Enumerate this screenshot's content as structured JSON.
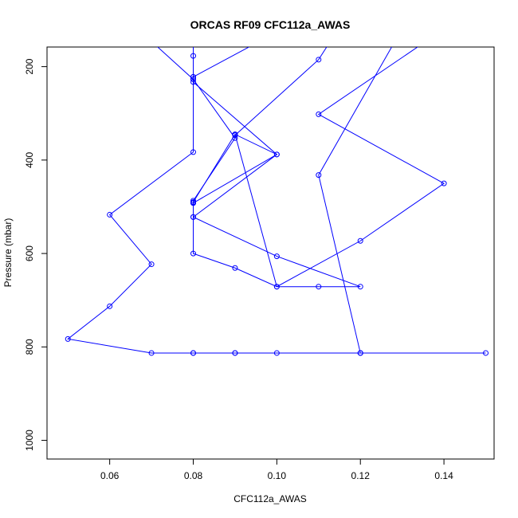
{
  "chart_data": {
    "type": "line",
    "title": "ORCAS RF09 CFC112a_AWAS",
    "xlabel": "CFC112a_AWAS",
    "ylabel": "Pressure (mbar)",
    "xlim": [
      0.045,
      0.152
    ],
    "ylim": [
      1040,
      158
    ],
    "y_inverted": true,
    "x_ticks": [
      0.06,
      0.08,
      0.1,
      0.12,
      0.14
    ],
    "x_tick_labels": [
      "0.06",
      "0.08",
      "0.10",
      "0.12",
      "0.14"
    ],
    "y_ticks": [
      200,
      400,
      600,
      800,
      1000
    ],
    "y_tick_labels": [
      "200",
      "400",
      "600",
      "800",
      "1000"
    ],
    "grid": false,
    "series": [
      {
        "color": "#0000ff",
        "marker": "open-circle",
        "points": [
          [
            0.08,
            813
          ],
          [
            0.09,
            813
          ],
          [
            0.09,
            813
          ],
          [
            0.1,
            813
          ],
          [
            0.12,
            813
          ],
          [
            0.12,
            813
          ],
          [
            0.15,
            813
          ],
          [
            0.08,
            813
          ],
          [
            0.07,
            813
          ],
          [
            0.05,
            783
          ],
          [
            0.06,
            713
          ],
          [
            0.07,
            623
          ],
          [
            0.06,
            517
          ],
          [
            0.08,
            383
          ],
          [
            0.08,
            222
          ],
          [
            0.08,
            227
          ],
          [
            0.08,
            177
          ],
          [
            0.08,
            145
          ]
        ]
      },
      {
        "color": "#0000ff",
        "marker": "open-circle",
        "points": [
          [
            0.0705,
            150
          ],
          [
            0.08,
            227
          ],
          [
            0.09,
            353
          ],
          [
            0.08,
            487
          ],
          [
            0.08,
            492
          ],
          [
            0.08,
            522
          ],
          [
            0.1,
            388
          ],
          [
            0.09,
            345
          ],
          [
            0.09,
            347
          ],
          [
            0.11,
            185
          ],
          [
            0.1125,
            150
          ]
        ]
      },
      {
        "color": "#0000ff",
        "marker": "open-circle",
        "points": [
          [
            0.095,
            150
          ],
          [
            0.08,
            222
          ],
          [
            0.08,
            233
          ],
          [
            0.1,
            388
          ],
          [
            0.08,
            492
          ],
          [
            0.08,
            522
          ],
          [
            0.1,
            606
          ],
          [
            0.12,
            671
          ],
          [
            0.11,
            671
          ],
          [
            0.1,
            671
          ],
          [
            0.09,
            631
          ],
          [
            0.08,
            600
          ],
          [
            0.08,
            490
          ],
          [
            0.09,
            345
          ],
          [
            0.1,
            671
          ],
          [
            0.12,
            573
          ],
          [
            0.14,
            450
          ],
          [
            0.11,
            302
          ],
          [
            0.135,
            150
          ]
        ]
      },
      {
        "color": "#0000ff",
        "marker": "open-circle",
        "points": [
          [
            0.12,
            813
          ],
          [
            0.11,
            432
          ],
          [
            0.128,
            150
          ]
        ]
      }
    ]
  }
}
